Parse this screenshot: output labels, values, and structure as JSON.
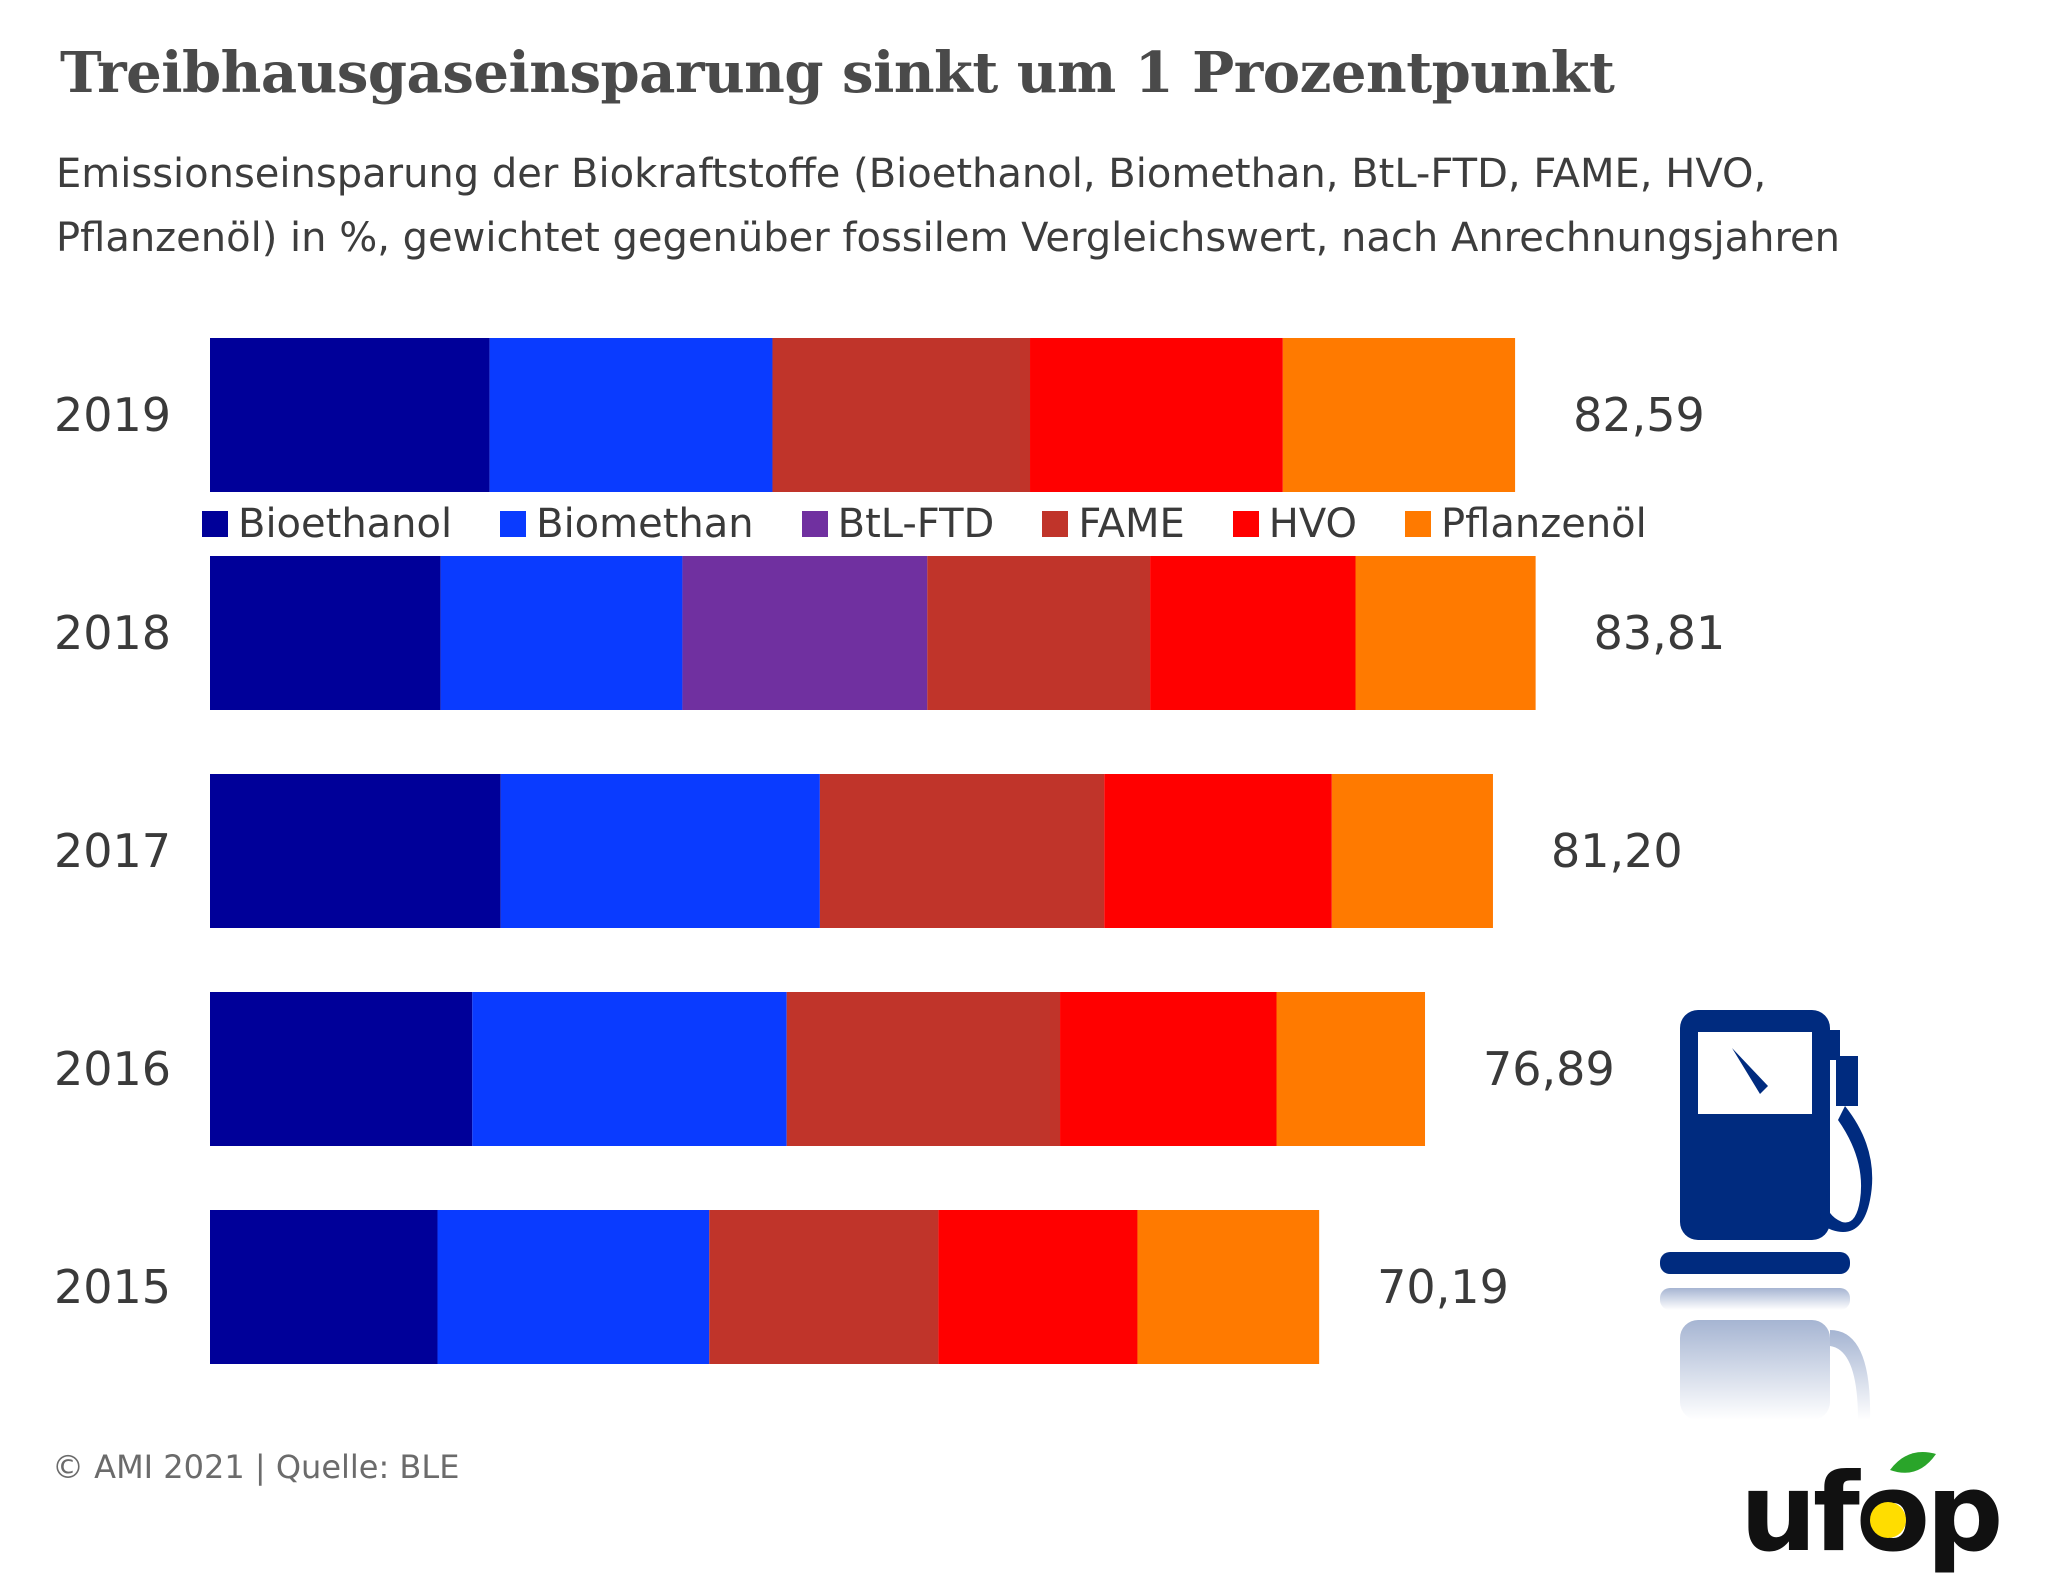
{
  "title": "Treibhausgaseinsparung sinkt um 1 Prozentpunkt",
  "subtitle": "Emissionseinsparung der Biokraftstoffe (Bioethanol, Biomethan, BtL-FTD, FAME, HVO, Pflanzenöl) in %, gewichtet gegenüber fossilem Vergleichswert, nach Anrechnungsjahren",
  "source": "© AMI 2021 | Quelle: BLE",
  "logo_text": "ufop",
  "colors": {
    "Bioethanol": "#000099",
    "Biomethan": "#0a3bff",
    "BtL-FTD": "#7030a0",
    "FAME": "#c0342a",
    "HVO": "#ff0000",
    "Pflanzenöl": "#ff7a00",
    "pump": "#002b7f",
    "logo": "#111111",
    "logo_accent": "#ffdd00",
    "logo_leaf": "#2aa52a"
  },
  "chart_data": {
    "type": "bar",
    "orientation": "horizontal",
    "stacked": true,
    "title": "Treibhausgaseinsparung sinkt um 1 Prozentpunkt",
    "categories": [
      "2019",
      "2018",
      "2017",
      "2016",
      "2015"
    ],
    "totals": [
      "82,59",
      "83,81",
      "81,20",
      "76,89",
      "70,19"
    ],
    "series": [
      {
        "name": "Bioethanol",
        "values": [
          17.7,
          14.6,
          18.4,
          16.6,
          14.4
        ]
      },
      {
        "name": "Biomethan",
        "values": [
          17.9,
          15.3,
          20.2,
          19.9,
          17.2
        ]
      },
      {
        "name": "BtL-FTD",
        "values": [
          0,
          15.5,
          0,
          0,
          0
        ]
      },
      {
        "name": "FAME",
        "values": [
          16.3,
          14.1,
          18.0,
          17.3,
          14.5
        ]
      },
      {
        "name": "HVO",
        "values": [
          16.0,
          13.0,
          14.4,
          13.7,
          12.6
        ]
      },
      {
        "name": "Pflanzenöl",
        "values": [
          14.7,
          11.4,
          10.2,
          9.4,
          11.5
        ]
      }
    ],
    "xlabel": "",
    "ylabel": "",
    "grid": false,
    "legend_position": "top"
  }
}
